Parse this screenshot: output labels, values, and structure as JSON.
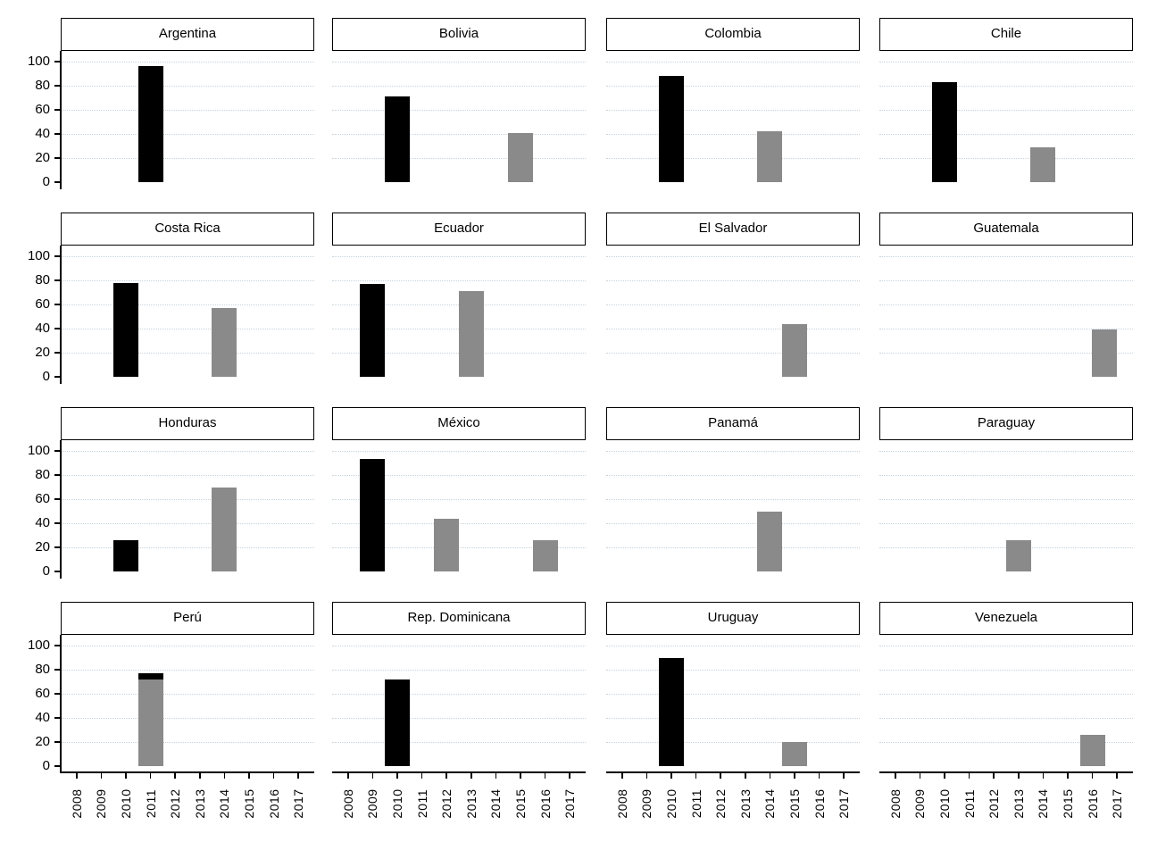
{
  "figure": {
    "description": "Small-multiples bar chart grid for 16 Latin American countries",
    "background": "#ffffff"
  },
  "chart_data": {
    "type": "bar",
    "layout": {
      "rows": 4,
      "cols": 4
    },
    "title": "",
    "xlabel": "",
    "ylabel": "",
    "x_axis": {
      "tick_labels": [
        "2008",
        "2009",
        "2010",
        "2011",
        "2012",
        "2013",
        "2014",
        "2015",
        "2016",
        "2017"
      ],
      "range": [
        2007.35,
        2017.65
      ],
      "label_rotation_deg": -90,
      "shown_on": "bottom-row-only"
    },
    "y_axis": {
      "tick_labels": [
        "0",
        "20",
        "40",
        "60",
        "80",
        "100"
      ],
      "tick_values": [
        0,
        20,
        40,
        60,
        80,
        100
      ],
      "range": [
        0,
        109
      ],
      "gridline_values": [
        20,
        40,
        60,
        80,
        100
      ],
      "grid_style": "dotted",
      "shown_on": "left-column-only"
    },
    "colors": {
      "bar_black": "#000000",
      "bar_gray": "#8a8a8a",
      "gridline": "#c7d3dc",
      "axis": "#000000",
      "panel_border": "#000000",
      "background": "#ffffff"
    },
    "bar_width_years": 1.0,
    "panels": [
      {
        "title": "Argentina",
        "bars": [
          {
            "year": 2011,
            "value": 96,
            "series": "black"
          }
        ]
      },
      {
        "title": "Bolivia",
        "bars": [
          {
            "year": 2010,
            "value": 71,
            "series": "black"
          },
          {
            "year": 2015,
            "value": 41,
            "series": "gray"
          }
        ]
      },
      {
        "title": "Colombia",
        "bars": [
          {
            "year": 2010,
            "value": 88,
            "series": "black"
          },
          {
            "year": 2014,
            "value": 42,
            "series": "gray"
          }
        ]
      },
      {
        "title": "Chile",
        "bars": [
          {
            "year": 2010,
            "value": 83,
            "series": "black"
          },
          {
            "year": 2014,
            "value": 29,
            "series": "gray"
          }
        ]
      },
      {
        "title": "Costa Rica",
        "bars": [
          {
            "year": 2010,
            "value": 78,
            "series": "black"
          },
          {
            "year": 2014,
            "value": 57,
            "series": "gray"
          }
        ]
      },
      {
        "title": "Ecuador",
        "bars": [
          {
            "year": 2009,
            "value": 77,
            "series": "black"
          },
          {
            "year": 2013,
            "value": 71,
            "series": "gray"
          }
        ]
      },
      {
        "title": "El Salvador",
        "bars": [
          {
            "year": 2015,
            "value": 44,
            "series": "gray"
          }
        ]
      },
      {
        "title": "Guatemala",
        "bars": [
          {
            "year": 2016,
            "value": 39,
            "series": "gray",
            "x_shift": 0.5
          }
        ]
      },
      {
        "title": "Honduras",
        "bars": [
          {
            "year": 2010,
            "value": 26,
            "series": "black"
          },
          {
            "year": 2014,
            "value": 70,
            "series": "gray"
          }
        ]
      },
      {
        "title": "México",
        "bars": [
          {
            "year": 2009,
            "value": 93,
            "series": "black"
          },
          {
            "year": 2012,
            "value": 44,
            "series": "gray"
          },
          {
            "year": 2016,
            "value": 26,
            "series": "gray"
          }
        ]
      },
      {
        "title": "Panamá",
        "bars": [
          {
            "year": 2014,
            "value": 50,
            "series": "gray"
          }
        ]
      },
      {
        "title": "Paraguay",
        "bars": [
          {
            "year": 2013,
            "value": 26,
            "series": "gray"
          }
        ]
      },
      {
        "title": "Perú",
        "bars": [
          {
            "year": 2011,
            "value": 77,
            "series": "black"
          },
          {
            "year": 2011,
            "value": 72,
            "series": "gray"
          }
        ]
      },
      {
        "title": "Rep. Dominicana",
        "bars": [
          {
            "year": 2010,
            "value": 72,
            "series": "black"
          }
        ]
      },
      {
        "title": "Uruguay",
        "bars": [
          {
            "year": 2010,
            "value": 90,
            "series": "black"
          },
          {
            "year": 2015,
            "value": 20,
            "series": "gray"
          }
        ]
      },
      {
        "title": "Venezuela",
        "bars": [
          {
            "year": 2016,
            "value": 26,
            "series": "gray"
          }
        ]
      }
    ]
  }
}
